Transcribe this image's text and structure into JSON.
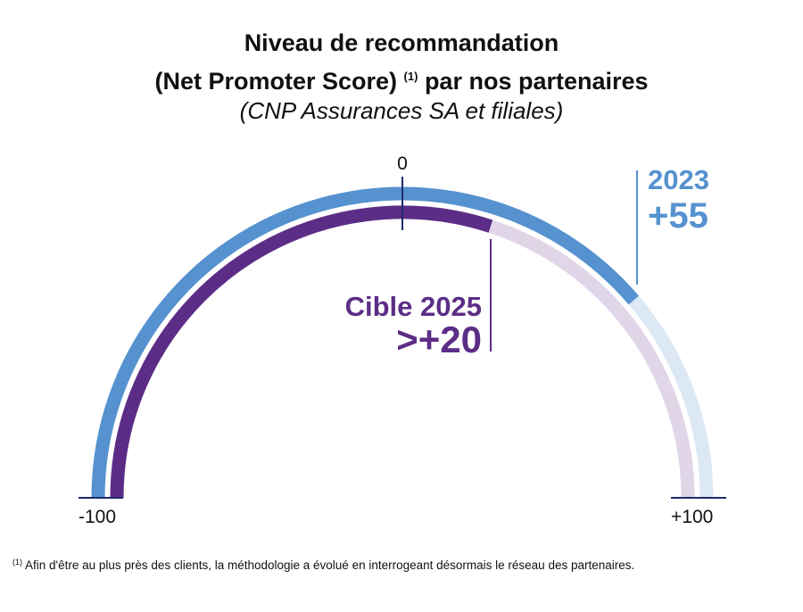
{
  "title_line1": "Niveau de recommandation",
  "title_line2_a": "(Net Promoter Score)",
  "title_note_mark": "(1)",
  "title_line2_b": "par nos partenaires",
  "subtitle": "(CNP Assurances SA et filiales)",
  "footnote_mark": "(1)",
  "footnote": "Afin d'être au plus près des clients, la méthodologie a évolué en interrogeant désormais le réseau des partenaires.",
  "chart_data": {
    "type": "gauge",
    "range": [
      -100,
      100
    ],
    "tick_labels": [
      "-100",
      "0",
      "+100"
    ],
    "series": [
      {
        "name": "2023",
        "label": "2023",
        "value_label": "+55",
        "value": 55,
        "color": "#5592cf",
        "track_color": "#dce8f4"
      },
      {
        "name": "Cible 2025",
        "label": "Cible 2025",
        "value_label": ">+20",
        "value": 20,
        "color": "#5c2d86",
        "track_color": "#e0d6e8"
      }
    ]
  }
}
